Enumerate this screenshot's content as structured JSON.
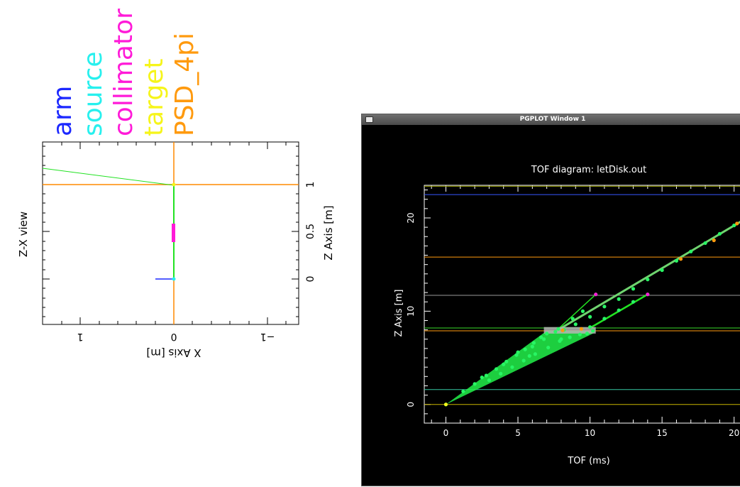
{
  "legend": [
    {
      "label": "arm",
      "color": "#1c28ff"
    },
    {
      "label": "source",
      "color": "#27f0ee"
    },
    {
      "label": "collimator",
      "color": "#ff1ad8"
    },
    {
      "label": "target",
      "color": "#f6f51a"
    },
    {
      "label": "PSD_4pi",
      "color": "#ff9a0e"
    }
  ],
  "zx_view": {
    "title": "Z-X view",
    "xlabel": "X Axis [m]",
    "zlabel": "Z Axis [m]",
    "x_ticks": [
      "1",
      "0",
      "−1"
    ],
    "z_ticks": [
      "1",
      "0.5",
      "0"
    ]
  },
  "window": {
    "title": "PGPLOT Window 1",
    "menu_icon": "window-menu-icon"
  },
  "chart_data": {
    "type": "scatter",
    "title": "TOF diagram: letDisk.out",
    "xlabel": "TOF (ms)",
    "ylabel": "Z Axis [m]",
    "xlim": [
      -1.5,
      21
    ],
    "ylim": [
      -2,
      23.5
    ],
    "x_ticks": [
      "0",
      "5",
      "10",
      "15",
      "20"
    ],
    "y_ticks": [
      "0",
      "10",
      "20"
    ],
    "components": [
      {
        "z": 0.0,
        "color": "#c8b400"
      },
      {
        "z": 1.6,
        "color": "#36c8a2"
      },
      {
        "z": 7.9,
        "color": "#ff9a0e"
      },
      {
        "z": 8.2,
        "color": "#38d82a"
      },
      {
        "z": 11.7,
        "color": "#9a9a9a"
      },
      {
        "z": 15.8,
        "color": "#ff9a0e"
      },
      {
        "z": 22.5,
        "color": "#3656ff"
      },
      {
        "z": 23.4,
        "color": "#9aa000"
      }
    ],
    "points": [
      [
        0.0,
        0.0
      ],
      [
        1.2,
        1.4
      ],
      [
        2.0,
        2.2
      ],
      [
        2.8,
        3.1
      ],
      [
        3.5,
        3.8
      ],
      [
        4.2,
        4.6
      ],
      [
        4.9,
        5.3
      ],
      [
        5.5,
        5.9
      ],
      [
        6.1,
        6.6
      ],
      [
        6.6,
        7.2
      ],
      [
        7.0,
        7.6
      ],
      [
        7.6,
        7.8
      ],
      [
        3.0,
        2.6
      ],
      [
        3.8,
        3.3
      ],
      [
        4.6,
        4.0
      ],
      [
        5.4,
        4.7
      ],
      [
        6.2,
        5.4
      ],
      [
        7.1,
        6.1
      ],
      [
        7.9,
        6.8
      ],
      [
        8.6,
        7.2
      ],
      [
        9.3,
        7.5
      ],
      [
        10.2,
        7.9
      ],
      [
        6.0,
        6.2
      ],
      [
        5.0,
        5.6
      ],
      [
        8.0,
        7.0
      ],
      [
        9.8,
        7.6
      ],
      [
        2.5,
        2.9
      ],
      [
        4.0,
        4.3
      ],
      [
        6.8,
        7.0
      ],
      [
        5.8,
        5.2
      ],
      [
        8.2,
        8.0
      ],
      [
        9.0,
        8.6
      ],
      [
        10.0,
        9.4
      ],
      [
        11.0,
        10.5
      ],
      [
        12.0,
        11.3
      ],
      [
        13.0,
        12.4
      ],
      [
        14.0,
        13.4
      ],
      [
        15.0,
        14.4
      ],
      [
        16.0,
        15.4
      ],
      [
        17.0,
        16.4
      ],
      [
        18.0,
        17.3
      ],
      [
        19.0,
        18.3
      ],
      [
        20.0,
        19.2
      ],
      [
        21.0,
        20.1
      ],
      [
        7.8,
        8.1
      ],
      [
        8.8,
        9.2
      ],
      [
        9.5,
        10.0
      ],
      [
        10.4,
        11.8
      ],
      [
        10.0,
        8.3
      ],
      [
        11.0,
        9.2
      ],
      [
        12.0,
        10.1
      ],
      [
        13.0,
        11.0
      ],
      [
        14.0,
        11.8
      ]
    ]
  }
}
